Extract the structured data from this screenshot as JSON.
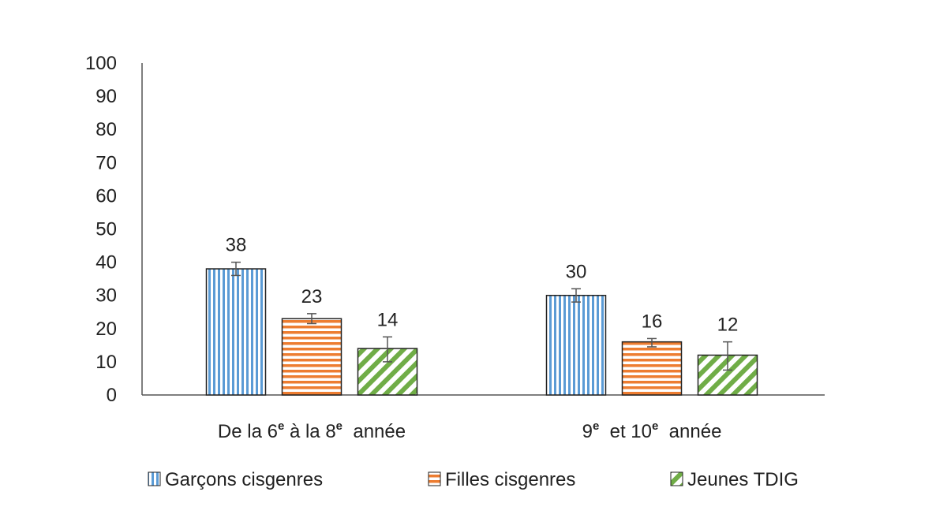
{
  "chart_data": {
    "type": "bar",
    "title": "",
    "xlabel": "",
    "ylabel": "",
    "ylim": [
      0,
      100
    ],
    "yticks": [
      0,
      10,
      20,
      30,
      40,
      50,
      60,
      70,
      80,
      90,
      100
    ],
    "grid": false,
    "legend_position": "bottom",
    "categories": [
      {
        "parts": [
          {
            "t": "De la 6",
            "sup": false
          },
          {
            "t": "e",
            "sup": true
          },
          {
            "t": " à la 8",
            "sup": false
          },
          {
            "t": "e",
            "sup": true
          },
          {
            "t": "  année",
            "sup": false
          }
        ]
      },
      {
        "parts": [
          {
            "t": "9",
            "sup": false
          },
          {
            "t": "e",
            "sup": true
          },
          {
            "t": "  et 10",
            "sup": false
          },
          {
            "t": "e",
            "sup": true
          },
          {
            "t": "  année",
            "sup": false
          }
        ]
      }
    ],
    "series": [
      {
        "name": "Garçons cisgenres",
        "values": [
          38,
          30
        ],
        "labels": [
          "38",
          "30"
        ],
        "err_low": [
          36,
          28
        ],
        "err_high": [
          40,
          32
        ],
        "color": "#5B9BD5",
        "pattern": "vertical-stripes"
      },
      {
        "name": "Filles cisgenres",
        "values": [
          23,
          16
        ],
        "labels": [
          "23",
          "16"
        ],
        "err_low": [
          21.5,
          14.5
        ],
        "err_high": [
          24.5,
          17
        ],
        "color": "#ED7D31",
        "pattern": "horizontal-stripes"
      },
      {
        "name": "Jeunes TDIG",
        "values": [
          14,
          12
        ],
        "labels": [
          "14",
          "12"
        ],
        "err_low": [
          10,
          7.5
        ],
        "err_high": [
          17.5,
          16
        ],
        "color": "#70AD47",
        "pattern": "diagonal-stripes"
      }
    ]
  }
}
